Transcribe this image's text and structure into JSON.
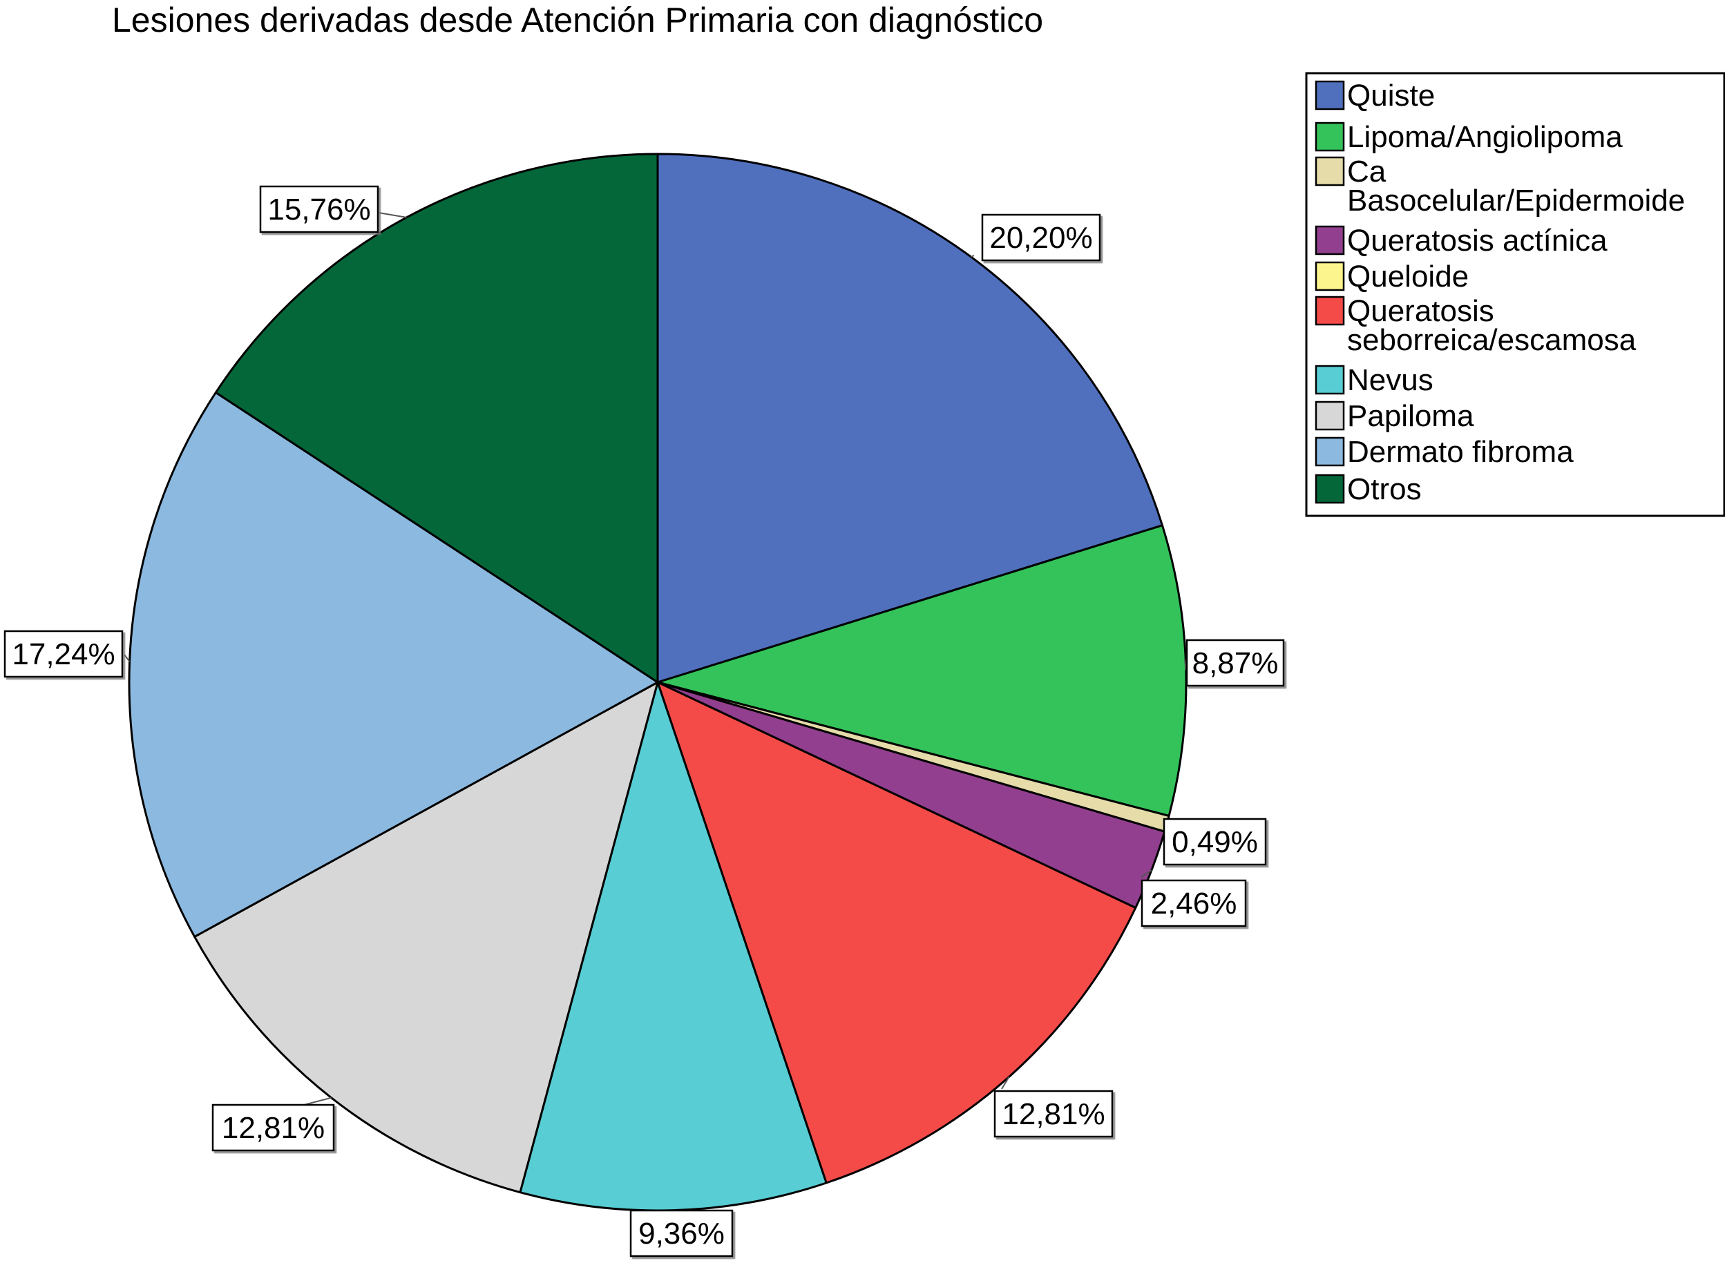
{
  "chart_data": {
    "type": "pie",
    "title": "Lesiones derivadas desde Atención Primaria con diagnóstico",
    "start_angle_deg": 0,
    "direction": "clockwise",
    "legend_position": "top-right",
    "slices": [
      {
        "label": "Quiste",
        "legend_lines": [
          "Quiste"
        ],
        "value": 20.2,
        "value_label": "20,20%",
        "color": "#5070BE"
      },
      {
        "label": "Lipoma/Angiolipoma",
        "legend_lines": [
          "Lipoma/Angiolipoma"
        ],
        "value": 8.87,
        "value_label": "8,87%",
        "color": "#34C35A"
      },
      {
        "label": "Ca Basocelular/Epidermoide",
        "legend_lines": [
          "Ca",
          "Basocelular/Epidermoide"
        ],
        "value": 0.49,
        "value_label": "0,49%",
        "color": "#E5DCAA"
      },
      {
        "label": "Queratosis actínica",
        "legend_lines": [
          "Queratosis actínica"
        ],
        "value": 2.46,
        "value_label": "2,46%",
        "color": "#913F8E"
      },
      {
        "label": "Queloide",
        "legend_lines": [
          "Queloide"
        ],
        "value": 0,
        "value_label": "",
        "color": "#FCF48C"
      },
      {
        "label": "Queratosis seborreica/escamosa",
        "legend_lines": [
          "Queratosis",
          "seborreica/escamosa"
        ],
        "value": 12.81,
        "value_label": "12,81%",
        "color": "#F54B48"
      },
      {
        "label": "Nevus",
        "legend_lines": [
          "Nevus"
        ],
        "value": 9.36,
        "value_label": "9,36%",
        "color": "#58CDD4"
      },
      {
        "label": "Papiloma",
        "legend_lines": [
          "Papiloma"
        ],
        "value": 12.81,
        "value_label": "12,81%",
        "color": "#D7D7D7"
      },
      {
        "label": "Dermato fibroma",
        "legend_lines": [
          "Dermato fibroma"
        ],
        "value": 17.24,
        "value_label": "17,24%",
        "color": "#8CB9DF"
      },
      {
        "label": "Otros",
        "legend_lines": [
          "Otros"
        ],
        "value": 15.76,
        "value_label": "15,76%",
        "color": "#04673A"
      }
    ]
  }
}
